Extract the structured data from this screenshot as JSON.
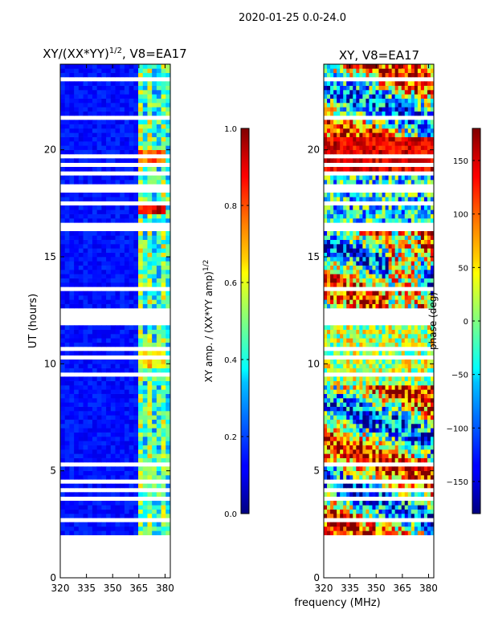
{
  "suptitle": "2020-01-25 0.0-24.0",
  "xlabel": "frequency (MHz)",
  "chart_data": [
    {
      "type": "heatmap",
      "title_main": "XY/(XX*YY)",
      "title_sup": "1/2",
      "title_rest": ", V8=EA17",
      "xlabel": "frequency (MHz)",
      "ylabel": "UT (hours)",
      "xlim": [
        320,
        383
      ],
      "ylim": [
        0,
        24
      ],
      "xticks": [
        320,
        335,
        350,
        365,
        380
      ],
      "yticks": [
        0,
        5,
        10,
        15,
        20
      ],
      "data_time_range_hours": [
        2.0,
        24.0
      ],
      "no_data_gap_hours": [
        11.6,
        12.5
      ],
      "bright_features": [
        {
          "ut_hours": 17.2,
          "freq_mhz": [
            364,
            380
          ],
          "value": 1.0
        },
        {
          "ut_hours": 19.5,
          "freq_mhz": [
            364,
            380
          ],
          "value": 0.9
        },
        {
          "ut_hours": 10.1,
          "freq_mhz": [
            364,
            380
          ],
          "value": 0.75
        }
      ],
      "colorbar": {
        "label": "XY amp. / (XX*YY amp)",
        "label_sup": "1/2",
        "range": [
          0.0,
          1.0
        ],
        "ticks": [
          "0.0",
          "0.2",
          "0.4",
          "0.6",
          "0.8",
          "1.0"
        ],
        "colormap": "jet"
      }
    },
    {
      "type": "heatmap",
      "title": "XY, V8=EA17",
      "xlabel": "frequency (MHz)",
      "xlim": [
        320,
        383
      ],
      "ylim": [
        0,
        24
      ],
      "xticks": [
        320,
        335,
        350,
        365,
        380
      ],
      "yticks": [
        0,
        5,
        10,
        15,
        20
      ],
      "data_time_range_hours": [
        2.0,
        24.0
      ],
      "no_data_gap_hours": [
        11.6,
        12.5
      ],
      "colorbar": {
        "label": "phase (deg)",
        "range": [
          -180,
          180
        ],
        "ticks": [
          "150",
          "100",
          "50",
          "0",
          "−50",
          "−100",
          "−150"
        ],
        "colormap": "jet"
      }
    }
  ]
}
